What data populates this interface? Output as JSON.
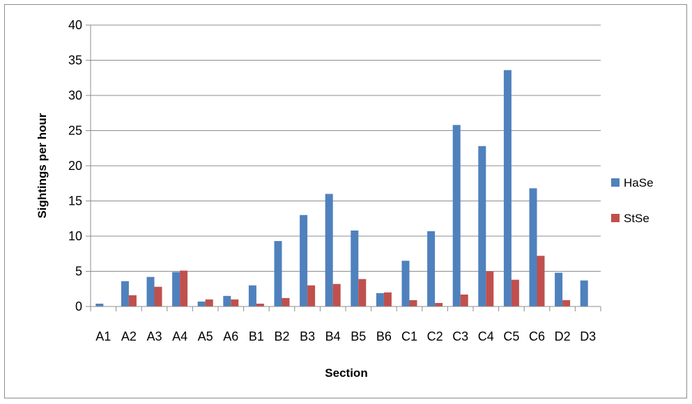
{
  "chart_data": {
    "type": "bar",
    "title": "",
    "xlabel": "Section",
    "ylabel": "Sightings per hour",
    "ylim": [
      0,
      40
    ],
    "yticks": [
      0,
      5,
      10,
      15,
      20,
      25,
      30,
      35,
      40
    ],
    "grid": true,
    "legend_position": "right",
    "categories": [
      "A1",
      "A2",
      "A3",
      "A4",
      "A5",
      "A6",
      "B1",
      "B2",
      "B3",
      "B4",
      "B5",
      "B6",
      "C1",
      "C2",
      "C3",
      "C4",
      "C5",
      "C6",
      "D2",
      "D3"
    ],
    "series": [
      {
        "name": "HaSe",
        "color": "#4f81bd",
        "values": [
          0.4,
          3.6,
          4.2,
          4.9,
          0.7,
          1.5,
          3.0,
          9.3,
          13.0,
          16.0,
          10.8,
          1.9,
          6.5,
          10.7,
          25.8,
          22.8,
          33.6,
          16.8,
          4.8,
          3.7
        ]
      },
      {
        "name": "StSe",
        "color": "#c0504d",
        "values": [
          0,
          1.6,
          2.8,
          5.1,
          1.0,
          1.0,
          0.4,
          1.2,
          3.0,
          3.2,
          3.9,
          2.0,
          0.9,
          0.5,
          1.7,
          5.0,
          3.8,
          7.2,
          0.9,
          0
        ]
      }
    ]
  }
}
